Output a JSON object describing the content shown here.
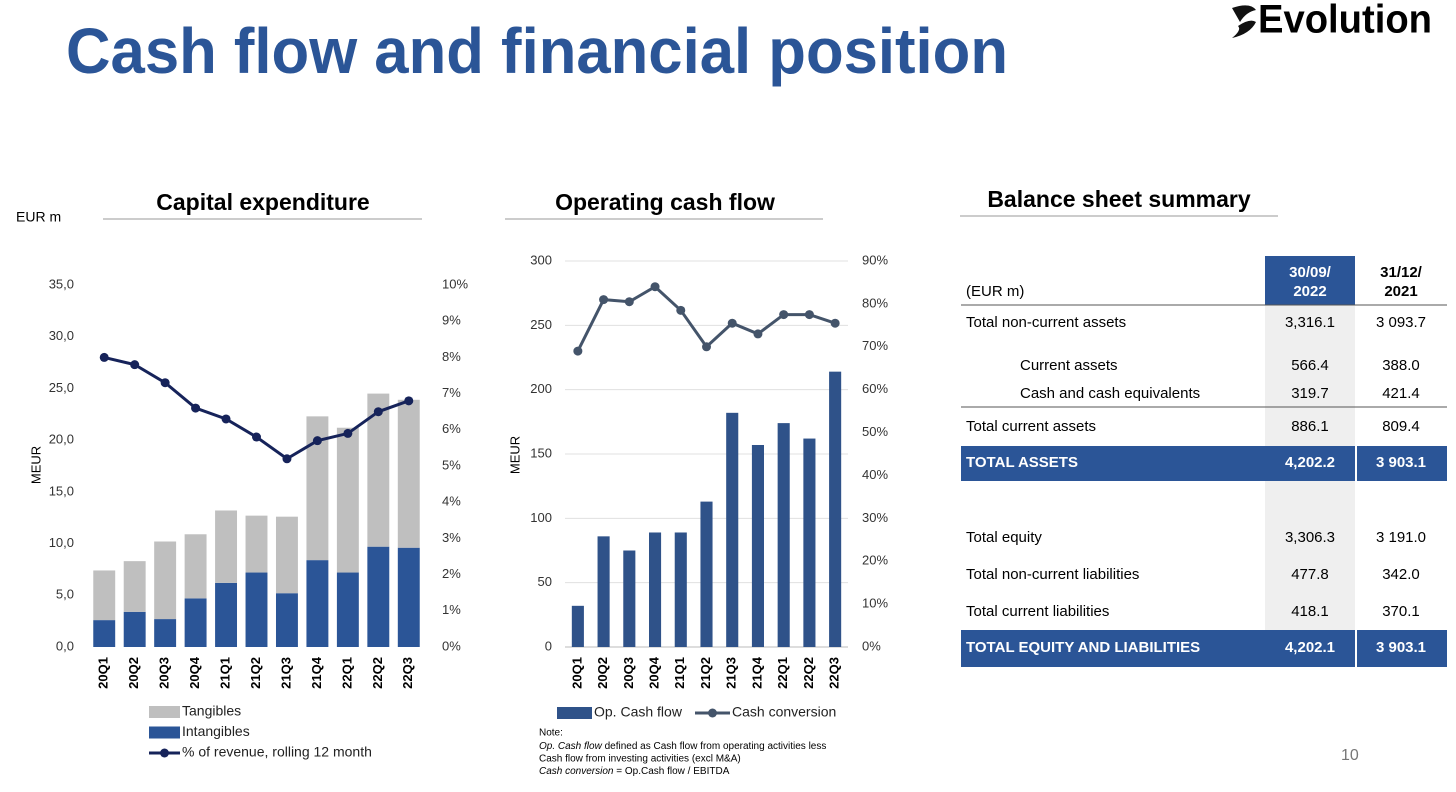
{
  "title": "Cash flow and financial position",
  "logo": "Evolution",
  "page_number": "10",
  "chart_data": [
    {
      "type": "bar",
      "stacked": true,
      "title": "Capital expenditure",
      "unit_label": "EUR m",
      "ylabel": "MEUR",
      "categories": [
        "20Q1",
        "20Q2",
        "20Q3",
        "20Q4",
        "21Q1",
        "21Q2",
        "21Q3",
        "21Q4",
        "22Q1",
        "22Q2",
        "22Q3"
      ],
      "series": [
        {
          "name": "Tangibles",
          "type": "bar",
          "color": "#bfbfbf",
          "values": [
            4.8,
            4.9,
            7.5,
            6.2,
            7.0,
            5.5,
            7.4,
            13.9,
            14.0,
            14.8,
            14.3
          ]
        },
        {
          "name": "Intangibles",
          "type": "bar",
          "color": "#2b5597",
          "values": [
            2.6,
            3.4,
            2.7,
            4.7,
            6.2,
            7.2,
            5.2,
            8.4,
            7.2,
            9.7,
            9.6
          ]
        },
        {
          "name": "% of revenue, rolling 12 month",
          "type": "line",
          "axis": "y2",
          "color": "#16235a",
          "values": [
            8.0,
            7.8,
            7.3,
            6.6,
            6.3,
            5.8,
            5.2,
            5.7,
            5.9,
            6.5,
            6.8
          ]
        }
      ],
      "ylim": [
        0,
        35
      ],
      "yticks": [
        {
          "value": 0,
          "label": "0,0"
        },
        {
          "value": 5,
          "label": "5,0"
        },
        {
          "value": 10,
          "label": "10,0"
        },
        {
          "value": 15,
          "label": "15,0"
        },
        {
          "value": 20,
          "label": "20,0"
        },
        {
          "value": 25,
          "label": "25,0"
        },
        {
          "value": 30,
          "label": "30,0"
        },
        {
          "value": 35,
          "label": "35,0"
        }
      ],
      "y2lim": [
        0,
        10
      ],
      "y2ticks": [
        {
          "value": 0,
          "label": "0%"
        },
        {
          "value": 1,
          "label": "1%"
        },
        {
          "value": 2,
          "label": "2%"
        },
        {
          "value": 3,
          "label": "3%"
        },
        {
          "value": 4,
          "label": "4%"
        },
        {
          "value": 5,
          "label": "5%"
        },
        {
          "value": 6,
          "label": "6%"
        },
        {
          "value": 7,
          "label": "7%"
        },
        {
          "value": 8,
          "label": "8%"
        },
        {
          "value": 9,
          "label": "9%"
        },
        {
          "value": 10,
          "label": "10%"
        }
      ],
      "grid": false
    },
    {
      "type": "bar",
      "stacked": false,
      "title": "Operating cash flow",
      "ylabel": "MEUR",
      "categories": [
        "20Q1",
        "20Q2",
        "20Q3",
        "20Q4",
        "21Q1",
        "21Q2",
        "21Q3",
        "21Q4",
        "22Q1",
        "22Q2",
        "22Q3"
      ],
      "series": [
        {
          "name": "Op. Cash flow",
          "type": "bar",
          "color": "#2f5289",
          "values": [
            32,
            86,
            75,
            89,
            89,
            113,
            182,
            157,
            174,
            162,
            214
          ]
        },
        {
          "name": "Cash conversion",
          "type": "line",
          "axis": "y2",
          "color": "#44546a",
          "values": [
            69,
            81,
            80.5,
            84,
            78.5,
            70,
            75.5,
            73,
            77.5,
            77.5,
            75.5
          ]
        }
      ],
      "ylim": [
        0,
        300
      ],
      "yticks": [
        0,
        50,
        100,
        150,
        200,
        250,
        300
      ],
      "y2lim": [
        0,
        90
      ],
      "y2ticks": [
        {
          "value": 0,
          "label": "0%"
        },
        {
          "value": 10,
          "label": "10%"
        },
        {
          "value": 20,
          "label": "20%"
        },
        {
          "value": 30,
          "label": "30%"
        },
        {
          "value": 40,
          "label": "40%"
        },
        {
          "value": 50,
          "label": "50%"
        },
        {
          "value": 60,
          "label": "60%"
        },
        {
          "value": 70,
          "label": "70%"
        },
        {
          "value": 80,
          "label": "80%"
        },
        {
          "value": 90,
          "label": "90%"
        }
      ],
      "grid": true,
      "note": {
        "heading": "Note:",
        "lines": [
          {
            "term": "Op. Cash flow",
            "text": " defined as Cash flow from operating activities less"
          },
          {
            "text": "Cash flow from investing activities (excl M&A)"
          },
          {
            "term": "Cash conversion",
            "text": " = Op.Cash flow / EBITDA"
          }
        ]
      }
    }
  ],
  "table": {
    "title": "Balance sheet summary",
    "columns": [
      "(EUR m)",
      [
        "30/09/",
        "2022"
      ],
      [
        "31/12/",
        "2021"
      ]
    ],
    "rows": [
      [
        "Total non-current assets",
        "3,316.1",
        "3 093.7"
      ],
      [
        "Current assets",
        "566.4",
        "388.0"
      ],
      [
        "Cash and cash equivalents",
        "319.7",
        "421.4"
      ],
      [
        "Total current assets",
        "886.1",
        "809.4"
      ],
      [
        "TOTAL ASSETS",
        "4,202.2",
        "3 903.1"
      ],
      [
        "Total equity",
        "3,306.3",
        "3 191.0"
      ],
      [
        "Total non-current liabilities",
        "477.8",
        "342.0"
      ],
      [
        "Total current liabilities",
        "418.1",
        "370.1"
      ],
      [
        "TOTAL EQUITY AND LIABILITIES",
        "4,202.1",
        "3 903.1"
      ]
    ]
  }
}
